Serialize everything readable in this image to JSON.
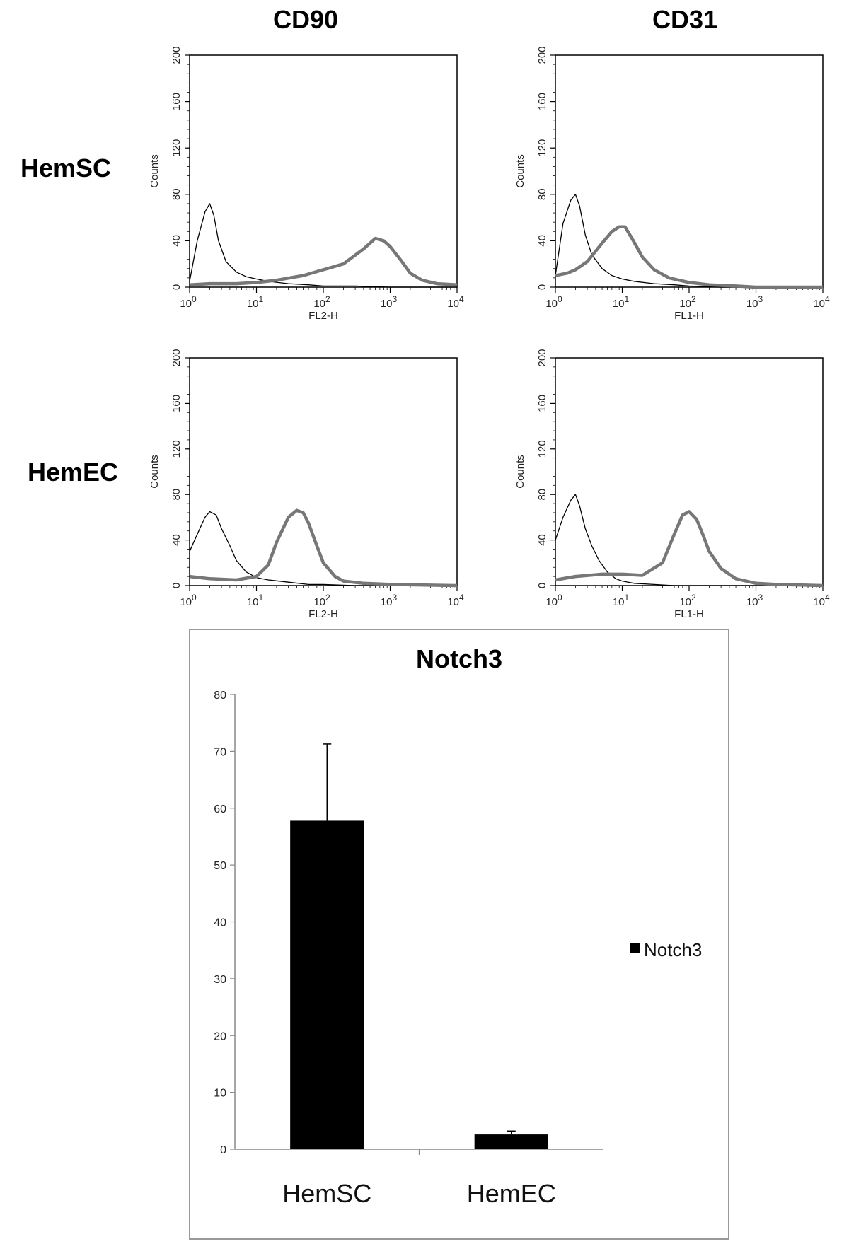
{
  "column_titles": [
    "CD90",
    "CD31"
  ],
  "row_labels": [
    "HemSC",
    "HemEC"
  ],
  "chart_data": [
    {
      "type": "line",
      "panel": "CD90 / HemSC",
      "xlabel": "FL2-H",
      "ylabel": "Counts",
      "xscale": "log",
      "xlim": [
        1,
        10000
      ],
      "ylim": [
        0,
        200
      ],
      "x_ticks": [
        "10^0",
        "10^1",
        "10^2",
        "10^3",
        "10^4"
      ],
      "y_ticks": [
        0,
        40,
        80,
        120,
        160,
        200
      ],
      "series": [
        {
          "style": "thin-black",
          "x": [
            1,
            1.3,
            1.7,
            2,
            2.3,
            2.7,
            3.5,
            5,
            7,
            10,
            15,
            30,
            60,
            100,
            300,
            1000,
            10000
          ],
          "y": [
            5,
            40,
            65,
            72,
            62,
            40,
            22,
            13,
            9,
            7,
            5,
            3,
            2,
            1,
            1,
            0,
            0
          ]
        },
        {
          "style": "thick-gray",
          "x": [
            1,
            2,
            5,
            10,
            20,
            50,
            100,
            200,
            400,
            600,
            800,
            1000,
            1500,
            2000,
            3000,
            5000,
            10000
          ],
          "y": [
            2,
            3,
            3,
            4,
            6,
            10,
            15,
            20,
            33,
            42,
            40,
            35,
            22,
            12,
            6,
            3,
            2
          ]
        }
      ]
    },
    {
      "type": "line",
      "panel": "CD31 / HemSC",
      "xlabel": "FL1-H",
      "ylabel": "Counts",
      "xscale": "log",
      "xlim": [
        1,
        10000
      ],
      "ylim": [
        0,
        200
      ],
      "x_ticks": [
        "10^0",
        "10^1",
        "10^2",
        "10^3",
        "10^4"
      ],
      "y_ticks": [
        0,
        40,
        80,
        120,
        160,
        200
      ],
      "series": [
        {
          "style": "thin-black",
          "x": [
            1,
            1.3,
            1.7,
            2,
            2.3,
            2.8,
            3.5,
            5,
            7,
            10,
            15,
            30,
            60,
            100,
            300,
            1000,
            10000
          ],
          "y": [
            10,
            55,
            75,
            80,
            70,
            45,
            28,
            16,
            10,
            7,
            5,
            3,
            2,
            1,
            0,
            0,
            0
          ]
        },
        {
          "style": "thick-gray",
          "x": [
            1,
            1.5,
            2,
            3,
            5,
            7,
            9,
            11,
            14,
            20,
            30,
            50,
            100,
            200,
            500,
            1000,
            10000
          ],
          "y": [
            10,
            12,
            15,
            22,
            38,
            48,
            52,
            52,
            42,
            26,
            15,
            8,
            4,
            2,
            1,
            0,
            0
          ]
        }
      ]
    },
    {
      "type": "line",
      "panel": "CD90 / HemEC",
      "xlabel": "FL2-H",
      "ylabel": "Counts",
      "xscale": "log",
      "xlim": [
        1,
        10000
      ],
      "ylim": [
        0,
        200
      ],
      "x_ticks": [
        "10^0",
        "10^1",
        "10^2",
        "10^3",
        "10^4"
      ],
      "y_ticks": [
        0,
        40,
        80,
        120,
        160,
        200
      ],
      "series": [
        {
          "style": "thin-black",
          "x": [
            1,
            1.3,
            1.7,
            2,
            2.5,
            3,
            4,
            5,
            7,
            10,
            15,
            30,
            60,
            100,
            300,
            1000,
            10000
          ],
          "y": [
            30,
            45,
            60,
            65,
            62,
            50,
            35,
            22,
            12,
            7,
            5,
            3,
            1,
            1,
            0,
            0,
            0
          ]
        },
        {
          "style": "thick-gray",
          "x": [
            1,
            2,
            5,
            10,
            15,
            20,
            30,
            40,
            50,
            60,
            80,
            100,
            150,
            200,
            400,
            1000,
            10000
          ],
          "y": [
            8,
            6,
            5,
            8,
            18,
            38,
            60,
            66,
            64,
            55,
            35,
            20,
            8,
            4,
            2,
            1,
            0
          ]
        }
      ]
    },
    {
      "type": "line",
      "panel": "CD31 / HemEC",
      "xlabel": "FL1-H",
      "ylabel": "Counts",
      "xscale": "log",
      "xlim": [
        1,
        10000
      ],
      "ylim": [
        0,
        200
      ],
      "x_ticks": [
        "10^0",
        "10^1",
        "10^2",
        "10^3",
        "10^4"
      ],
      "y_ticks": [
        0,
        40,
        80,
        120,
        160,
        200
      ],
      "series": [
        {
          "style": "thin-black",
          "x": [
            1,
            1.3,
            1.7,
            2,
            2.3,
            2.8,
            3.5,
            4.5,
            6,
            8,
            10,
            15,
            30,
            60,
            100,
            1000,
            10000
          ],
          "y": [
            40,
            60,
            75,
            80,
            70,
            50,
            35,
            22,
            12,
            6,
            4,
            2,
            1,
            0,
            0,
            0,
            0
          ]
        },
        {
          "style": "thick-gray",
          "x": [
            1,
            2,
            5,
            10,
            20,
            40,
            60,
            80,
            100,
            130,
            160,
            200,
            300,
            500,
            1000,
            2000,
            10000
          ],
          "y": [
            5,
            8,
            10,
            10,
            9,
            20,
            45,
            62,
            65,
            58,
            45,
            30,
            15,
            6,
            2,
            1,
            0
          ]
        }
      ]
    },
    {
      "type": "bar",
      "title": "Notch3",
      "categories": [
        "HemSC",
        "HemEC"
      ],
      "series": [
        {
          "name": "Notch3",
          "values": [
            57.8,
            2.6
          ],
          "error": [
            13.5,
            0.6
          ],
          "color": "#000000"
        }
      ],
      "ylim": [
        0,
        80
      ],
      "y_ticks": [
        0,
        10,
        20,
        30,
        40,
        50,
        60,
        70,
        80
      ],
      "legend": "right"
    }
  ]
}
